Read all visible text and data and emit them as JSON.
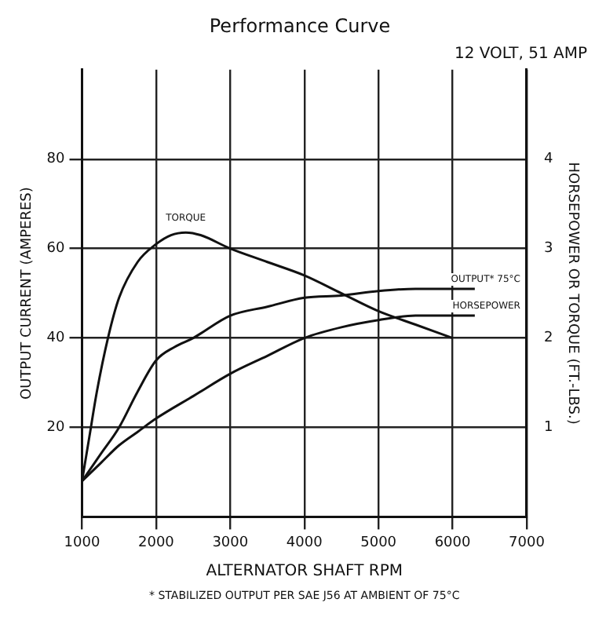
{
  "chart_data": {
    "type": "line",
    "title": "Performance Curve",
    "subtitle": "12 VOLT, 51 AMP",
    "xlabel": "ALTERNATOR SHAFT RPM",
    "ylabel": "OUTPUT CURRENT (AMPERES)",
    "y2label": "HORSEPOWER OR TORQUE (FT.-LBS.)",
    "annotations": [
      "* STABILIZED OUTPUT PER SAE J56 AT AMBIENT OF 75°C"
    ],
    "xlim": [
      1000,
      7000
    ],
    "xticks": [
      1000,
      2000,
      3000,
      4000,
      5000,
      6000,
      7000
    ],
    "ylim": [
      0,
      100
    ],
    "yticks": [
      20,
      40,
      60,
      80
    ],
    "y2lim": [
      0,
      5
    ],
    "y2ticks": [
      1,
      2,
      3,
      4
    ],
    "grid": true,
    "legend": false,
    "marker": "none",
    "line_style": "solid",
    "series": [
      {
        "name": "TORQUE",
        "color": "#111111",
        "axis": "y2",
        "x": [
          1000,
          1100,
          1200,
          1350,
          1500,
          1750,
          2000,
          2200,
          2400,
          2600,
          3000,
          3500,
          4000,
          4500,
          5000,
          5500,
          6000
        ],
        "values": [
          0.4,
          0.9,
          1.4,
          2.0,
          2.45,
          2.85,
          3.05,
          3.15,
          3.18,
          3.15,
          3.0,
          2.85,
          2.7,
          2.5,
          2.3,
          2.15,
          2.0
        ]
      },
      {
        "name": "OUTPUT* 75°C",
        "color": "#111111",
        "x": [
          1000,
          1250,
          1500,
          1750,
          2000,
          2250,
          2500,
          3000,
          3500,
          4000,
          4500,
          5000,
          5500,
          6000,
          6300
        ],
        "values": [
          8,
          14,
          20,
          28,
          35,
          38,
          40,
          45,
          47,
          49,
          49.5,
          50.5,
          51,
          51,
          51
        ]
      },
      {
        "name": "HORSEPOWER",
        "color": "#111111",
        "axis": "y2",
        "x": [
          1000,
          1250,
          1500,
          1750,
          2000,
          2500,
          3000,
          3500,
          4000,
          4500,
          5000,
          5500,
          6000,
          6300
        ],
        "values": [
          0.4,
          0.6,
          0.8,
          0.95,
          1.1,
          1.35,
          1.6,
          1.8,
          2.0,
          2.12,
          2.2,
          2.25,
          2.25,
          2.25
        ]
      }
    ]
  }
}
